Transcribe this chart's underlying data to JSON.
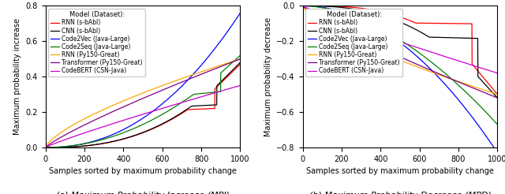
{
  "legend_title": "Model (Dataset):",
  "models": [
    {
      "label": "RNN (s-bAbI)",
      "color": "#ff0000"
    },
    {
      "label": "CNN (s-bAbI)",
      "color": "#000000"
    },
    {
      "label": "Code2Vec (Java-Large)",
      "color": "#0000ff"
    },
    {
      "label": "Code2Seq (Java-Large)",
      "color": "#008000"
    },
    {
      "label": "RNN (Py150-Great)",
      "color": "#ffa500"
    },
    {
      "label": "Transformer (Py150-Great)",
      "color": "#800080"
    },
    {
      "label": "CodeBERT (CSN-Java)",
      "color": "#cc00cc"
    }
  ],
  "xlabel": "Samples sorted by maximum probability change",
  "ylabel_left": "Maximum probability increase",
  "ylabel_right": "Maximum probability decrease",
  "caption_left": "(a) Maximum Probability Increase (MPI)",
  "caption_right": "(b) Maximum Probability Decrease (MPD)",
  "xlim": [
    0,
    1000
  ],
  "ylim_left": [
    0.0,
    0.8
  ],
  "ylim_right": [
    -0.8,
    0.0
  ],
  "yticks_left": [
    0.0,
    0.2,
    0.4,
    0.6,
    0.8
  ],
  "yticks_right": [
    -0.8,
    -0.6,
    -0.4,
    -0.2,
    0.0
  ],
  "xticks": [
    0,
    200,
    400,
    600,
    800,
    1000
  ],
  "n_samples": 1000
}
